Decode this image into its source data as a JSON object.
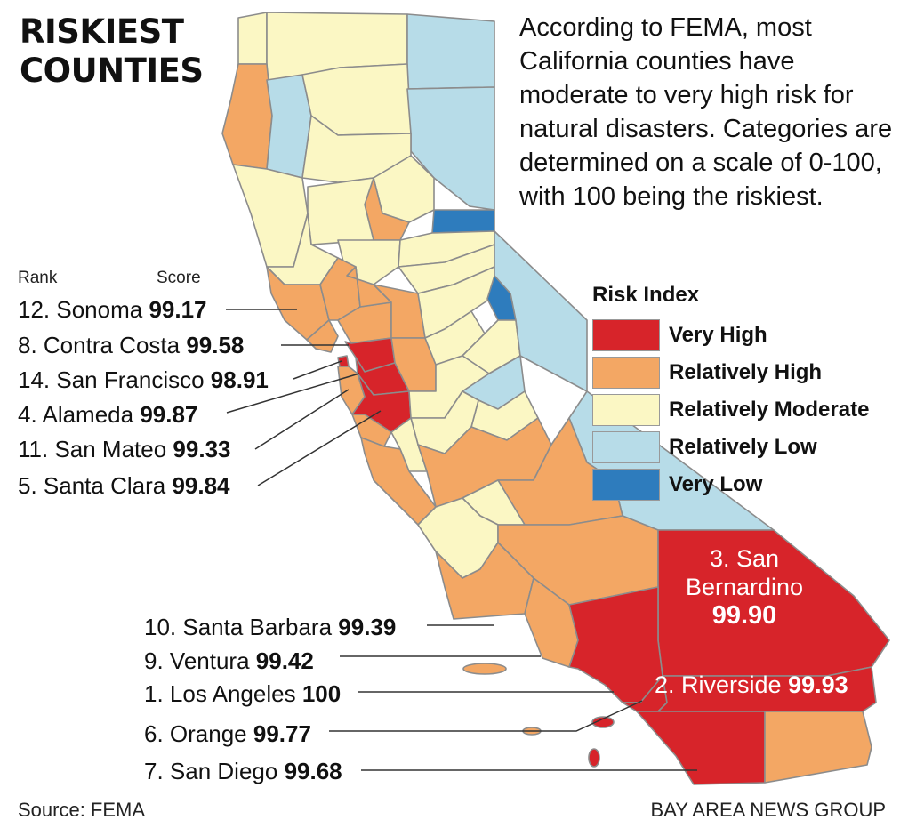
{
  "title_line1": "RISKIEST",
  "title_line2": "COUNTIES",
  "intro": "According to FEMA, most California counties have moderate to very high risk for natural disasters. Categories are determined on a scale of 0-100, with 100 being the riskiest.",
  "header_rank": "Rank",
  "header_score": "Score",
  "counties": [
    {
      "label": "12. Sonoma",
      "score": "99.17"
    },
    {
      "label": "8. Contra Costa",
      "score": "99.58"
    },
    {
      "label": "14. San Francisco",
      "score": "98.91"
    },
    {
      "label": "4. Alameda",
      "score": "99.87"
    },
    {
      "label": "11. San Mateo",
      "score": "99.33"
    },
    {
      "label": "5. Santa Clara",
      "score": "99.84"
    },
    {
      "label": "10. Santa Barbara",
      "score": "99.39"
    },
    {
      "label": "9. Ventura",
      "score": "99.42"
    },
    {
      "label": "1. Los Angeles",
      "score": "100"
    },
    {
      "label": "6. Orange",
      "score": "99.77"
    },
    {
      "label": "7. San Diego",
      "score": "99.68"
    }
  ],
  "san_bernardino": {
    "line1": "3. San",
    "line2": "Bernardino",
    "score": "99.90"
  },
  "riverside": {
    "label": "2. Riverside",
    "score": "99.93"
  },
  "legend": {
    "title": "Risk Index",
    "items": [
      {
        "label": "Very High",
        "color": "#d7242a"
      },
      {
        "label": "Relatively High",
        "color": "#f3a764"
      },
      {
        "label": "Relatively Moderate",
        "color": "#fbf7c4"
      },
      {
        "label": "Relatively Low",
        "color": "#b7dce8"
      },
      {
        "label": "Very Low",
        "color": "#2e7cbd"
      }
    ]
  },
  "source": "Source: FEMA",
  "credit": "BAY AREA NEWS GROUP"
}
